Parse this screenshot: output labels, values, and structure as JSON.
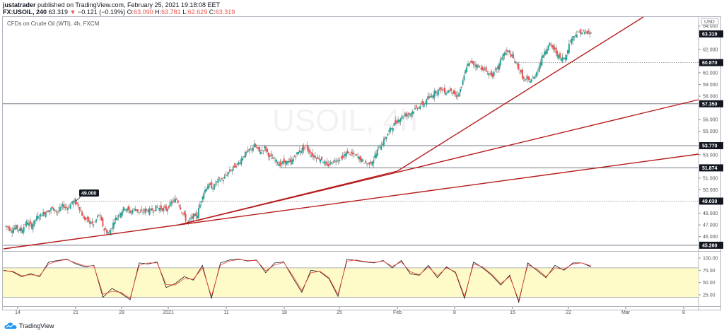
{
  "header": {
    "author": "justatrader",
    "published": "published on TradingView.com, February 25, 2021 19:18:08 EET",
    "symbol": "FX:USOIL, 240",
    "last": "63.319",
    "change": "−0.121 (−0.19%)",
    "open_label": "O:",
    "open": "63.090",
    "high_label": "H:",
    "high": "63.781",
    "low_label": "L:",
    "low": "62.629",
    "close_label": "C:",
    "close": "63.319"
  },
  "legend": "CFDs on Crude Oil (WTI), 4h, FXCM",
  "watermark": "USOIL, 4h",
  "currency": "USD",
  "brand": "TradingView",
  "colors": {
    "up": "#26a69a",
    "down": "#ef5350",
    "trend": "#b71c1c",
    "stoch_k": "#131722",
    "stoch_d": "#f44336",
    "band": "#fffbc8"
  },
  "chart_data": [
    {
      "type": "candlestick",
      "title": "CFDs on Crude Oil (WTI), 4h, FXCM",
      "xlabel": "",
      "ylabel": "USD",
      "ylim": [
        44.5,
        64.5
      ],
      "x_ticks": [
        "14",
        "21",
        "28",
        "2021",
        "11",
        "18",
        "25",
        "Feb",
        "8",
        "15",
        "22",
        "Mar",
        "8"
      ],
      "y_ticks": [
        "64.000",
        "62.000",
        "61.000",
        "60.000",
        "59.000",
        "58.000",
        "56.000",
        "55.000",
        "53.000",
        "51.000",
        "50.000",
        "48.000",
        "47.000",
        "46.000"
      ],
      "price_labels": [
        {
          "value": "63.319",
          "kind": "last"
        },
        {
          "value": "60.870",
          "kind": "horizontal-ray"
        },
        {
          "value": "57.350",
          "kind": "horizontal-line"
        },
        {
          "value": "53.770",
          "kind": "horizontal-line"
        },
        {
          "value": "51.874",
          "kind": "horizontal-line"
        },
        {
          "value": "49.030",
          "kind": "horizontal-ray"
        },
        {
          "value": "45.260",
          "kind": "horizontal-line"
        }
      ],
      "annotation": {
        "text": "49.000",
        "x_date": "Dec 21",
        "note": "callout at local high"
      },
      "closes_approx": [
        46.9,
        46.6,
        46.8,
        46.5,
        47.2,
        46.9,
        47.6,
        47.9,
        48.2,
        48.4,
        48.1,
        48.6,
        48.5,
        49.0,
        48.7,
        47.6,
        47.3,
        47.0,
        47.9,
        46.6,
        46.3,
        47.4,
        48.0,
        48.5,
        48.1,
        48.4,
        48.0,
        48.3,
        48.2,
        48.5,
        48.4,
        48.3,
        48.9,
        49.2,
        48.2,
        47.2,
        47.6,
        47.9,
        49.6,
        50.4,
        50.2,
        50.8,
        50.9,
        51.5,
        51.9,
        52.3,
        53.0,
        53.3,
        53.8,
        53.2,
        53.6,
        52.8,
        52.5,
        52.2,
        52.4,
        52.3,
        53.0,
        53.4,
        53.7,
        53.0,
        52.8,
        52.6,
        52.0,
        52.4,
        52.6,
        52.8,
        53.2,
        53.0,
        52.8,
        52.4,
        52.2,
        52.6,
        53.6,
        54.2,
        55.0,
        55.6,
        56.1,
        56.4,
        56.5,
        56.9,
        57.2,
        57.5,
        58.0,
        58.4,
        58.6,
        58.4,
        58.6,
        57.9,
        58.8,
        60.6,
        60.9,
        60.6,
        60.4,
        60.0,
        59.8,
        60.4,
        61.6,
        61.8,
        61.2,
        60.4,
        59.4,
        59.3,
        59.6,
        60.6,
        61.9,
        62.4,
        61.9,
        61.2,
        61.3,
        62.8,
        63.3,
        63.5,
        63.4,
        63.319
      ],
      "indicator": {
        "name": "Stochastic",
        "ylim": [
          0,
          100
        ],
        "y_ticks": [
          "100.00",
          "75.00",
          "50.00",
          "25.00"
        ],
        "band": [
          20,
          80
        ],
        "series": [
          {
            "name": "%K",
            "values": [
              75,
              72,
              62,
              68,
              62,
              92,
              95,
              98,
              88,
              82,
              85,
              20,
              38,
              28,
              15,
              90,
              88,
              92,
              40,
              48,
              62,
              55,
              85,
              18,
              90,
              96,
              98,
              94,
              96,
              70,
              90,
              92,
              60,
              30,
              75,
              72,
              58,
              22,
              98,
              95,
              92,
              90,
              95,
              80,
              95,
              68,
              65,
              85,
              60,
              82,
              70,
              18,
              92,
              80,
              65,
              45,
              65,
              10,
              90,
              75,
              60,
              85,
              75,
              90,
              90,
              82
            ]
          },
          {
            "name": "%D",
            "values": [
              74,
              73,
              64,
              66,
              64,
              88,
              94,
              97,
              90,
              84,
              84,
              26,
              32,
              30,
              18,
              85,
              90,
              90,
              46,
              45,
              58,
              57,
              80,
              22,
              86,
              94,
              97,
              95,
              95,
              74,
              86,
              91,
              64,
              34,
              70,
              73,
              60,
              26,
              94,
              96,
              93,
              91,
              94,
              83,
              92,
              72,
              66,
              82,
              64,
              80,
              72,
              22,
              88,
              82,
              67,
              48,
              62,
              14,
              86,
              78,
              62,
              80,
              77,
              88,
              90,
              84
            ]
          }
        ]
      }
    }
  ]
}
